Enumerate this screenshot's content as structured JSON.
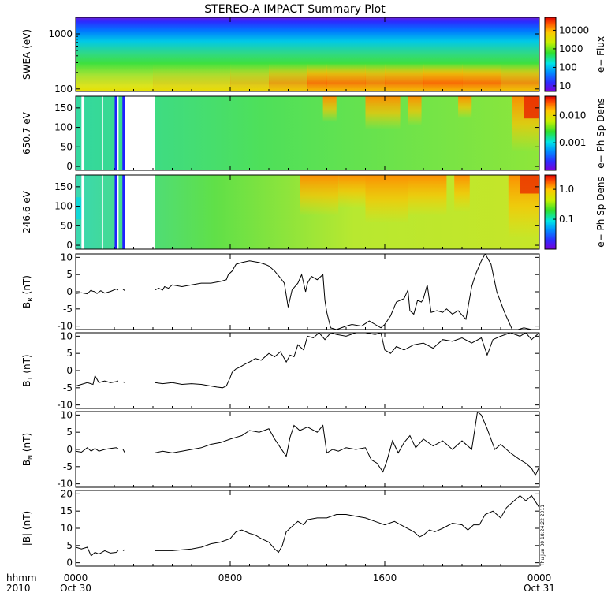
{
  "title": "STEREO-A IMPACT Summary Plot",
  "x_axis": {
    "corner_labels": [
      "hhmm",
      "2010"
    ],
    "tick_labels": [
      "0000",
      "0800",
      "1600",
      "0000"
    ],
    "tick_hours": [
      0,
      8,
      16,
      24
    ],
    "date_labels": [
      "Oct 30",
      "Oct 31"
    ],
    "range_hours": [
      0,
      24
    ]
  },
  "timestamp": "Thu Jun 30 18:24:22 2011",
  "colors": {
    "line": "#000000",
    "background": "#ffffff",
    "gap": "#ffffff"
  },
  "chart_data": [
    {
      "type": "heatmap",
      "ylabel": "SWEA (eV)",
      "yscale": "log",
      "ylim": [
        90,
        2000
      ],
      "ytick_values": [
        100,
        1000
      ],
      "ytick_labels": [
        "100",
        "1000"
      ],
      "colorbar": {
        "label": "e− Flux",
        "scale": "log",
        "range": [
          5,
          50000
        ],
        "tick_values": [
          10,
          100,
          1000,
          10000
        ],
        "tick_labels": [
          "10",
          "100",
          "1000",
          "10000"
        ]
      },
      "data_gaps_hours": []
    },
    {
      "type": "heatmap",
      "ylabel": "650.7 eV",
      "ylim": [
        -10,
        180
      ],
      "ytick_values": [
        0,
        50,
        100,
        150
      ],
      "ytick_labels": [
        "0",
        "50",
        "100",
        "150"
      ],
      "colorbar": {
        "label": "e− Ph Sp Dens",
        "scale": "log",
        "range": [
          0.0001,
          0.05
        ],
        "tick_values": [
          0.001,
          0.01
        ],
        "tick_labels": [
          "0.001",
          "0.010"
        ]
      },
      "data_gaps_hours": [
        [
          -0.1,
          0.02
        ],
        [
          0.3,
          0.45
        ],
        [
          1.38,
          1.42
        ],
        [
          2.15,
          2.22
        ],
        [
          2.55,
          4.1
        ]
      ],
      "blue_stripes_hours": [
        2.08,
        2.48
      ]
    },
    {
      "type": "heatmap",
      "ylabel": "246.6 eV",
      "ylim": [
        -10,
        180
      ],
      "ytick_values": [
        0,
        50,
        100,
        150
      ],
      "ytick_labels": [
        "0",
        "50",
        "100",
        "150"
      ],
      "colorbar": {
        "label": "e− Ph Sp Dens",
        "scale": "log",
        "range": [
          0.01,
          3
        ],
        "tick_values": [
          0.1,
          1.0
        ],
        "tick_labels": [
          "0.1",
          "1.0"
        ]
      },
      "data_gaps_hours": [
        [
          -0.1,
          0.02
        ],
        [
          0.3,
          0.45
        ],
        [
          1.38,
          1.42
        ],
        [
          2.15,
          2.22
        ],
        [
          2.55,
          4.1
        ]
      ],
      "blue_stripes_hours": [
        2.08,
        2.48
      ]
    },
    {
      "type": "line",
      "ylabel": "B_R (nT)",
      "ylim": [
        -11,
        11
      ],
      "ytick_values": [
        10,
        5,
        0,
        -5,
        -10
      ],
      "ytick_labels": [
        "10",
        "5",
        "0",
        "-5",
        "-10"
      ],
      "x": [
        0.0,
        0.3,
        0.6,
        0.8,
        0.85,
        1.0,
        1.1,
        1.3,
        1.5,
        1.8,
        2.1,
        2.2,
        null,
        2.45,
        2.55,
        null,
        4.1,
        4.3,
        4.5,
        4.6,
        4.8,
        5.0,
        5.5,
        6.0,
        6.5,
        7.0,
        7.5,
        7.8,
        7.9,
        8.1,
        8.3,
        8.6,
        9.0,
        9.5,
        9.8,
        10.0,
        10.3,
        10.6,
        10.8,
        11.0,
        11.2,
        11.5,
        11.7,
        11.9,
        12.0,
        12.2,
        12.5,
        12.8,
        12.9,
        13.0,
        13.2,
        13.5,
        14.0,
        14.3,
        14.8,
        15.2,
        15.5,
        15.8,
        16.0,
        16.3,
        16.6,
        17.0,
        17.2,
        17.3,
        17.5,
        17.7,
        17.9,
        18.0,
        18.2,
        18.4,
        18.7,
        19.0,
        19.2,
        19.5,
        19.8,
        20.2,
        20.5,
        20.7,
        21.0,
        21.2,
        21.5,
        21.8,
        22.2,
        22.6,
        22.9,
        23.2,
        23.6,
        23.8,
        24.0
      ],
      "y": [
        -0.5,
        -0.3,
        -0.6,
        0.5,
        0.2,
        0.0,
        -0.5,
        0.3,
        -0.4,
        0.1,
        0.8,
        0.5,
        null,
        0.7,
        0.3,
        null,
        0.5,
        1.0,
        0.5,
        1.5,
        1.0,
        2.0,
        1.5,
        2.0,
        2.5,
        2.5,
        3.0,
        3.5,
        5.0,
        6.0,
        8.0,
        8.5,
        9.0,
        8.5,
        8.0,
        7.5,
        6.0,
        4.0,
        2.5,
        -4.5,
        0.5,
        2.5,
        5.0,
        0.0,
        2.5,
        4.5,
        3.5,
        5.0,
        -2.5,
        -6.0,
        -10.5,
        -11.0,
        -10.0,
        -9.5,
        -10.0,
        -8.5,
        -9.5,
        -10.5,
        -9.5,
        -7.0,
        -3.0,
        -2.0,
        0.5,
        -5.5,
        -6.5,
        -2.5,
        -3.0,
        -2.0,
        2.0,
        -6.0,
        -5.5,
        -6.0,
        -5.0,
        -6.5,
        -5.5,
        -8.0,
        1.5,
        5.0,
        9.0,
        11.0,
        8.0,
        0.0,
        -6.0,
        -11.0,
        -11.0,
        -10.5,
        -11.0,
        -11.0,
        -11.0
      ]
    },
    {
      "type": "line",
      "ylabel": "B_T (nT)",
      "ylim": [
        -11,
        11
      ],
      "ytick_values": [
        10,
        5,
        0,
        -5,
        -10
      ],
      "ytick_labels": [
        "10",
        "5",
        "0",
        "-5",
        "-10"
      ],
      "x": [
        0.0,
        0.3,
        0.6,
        0.9,
        1.0,
        1.2,
        1.5,
        1.8,
        2.1,
        2.2,
        null,
        2.45,
        2.55,
        null,
        4.1,
        4.5,
        5.0,
        5.5,
        6.0,
        6.5,
        7.0,
        7.3,
        7.6,
        7.8,
        8.0,
        8.1,
        8.3,
        8.5,
        8.8,
        9.0,
        9.3,
        9.6,
        10.0,
        10.3,
        10.6,
        10.9,
        11.1,
        11.3,
        11.5,
        11.8,
        12.0,
        12.3,
        12.6,
        12.9,
        13.2,
        13.5,
        14.0,
        14.5,
        15.0,
        15.5,
        15.8,
        16.0,
        16.3,
        16.6,
        17.0,
        17.5,
        18.0,
        18.5,
        19.0,
        19.5,
        20.0,
        20.5,
        21.0,
        21.3,
        21.6,
        22.0,
        22.5,
        23.0,
        23.3,
        23.6,
        24.0
      ],
      "y": [
        -4.5,
        -4.0,
        -3.5,
        -4.0,
        -1.5,
        -3.5,
        -3.0,
        -3.5,
        -3.2,
        -3.0,
        null,
        -3.3,
        -3.5,
        null,
        -3.5,
        -3.8,
        -3.5,
        -4.0,
        -3.8,
        -4.0,
        -4.5,
        -4.8,
        -5.0,
        -4.5,
        -2.0,
        -0.5,
        0.5,
        1.0,
        2.0,
        2.5,
        3.5,
        3.0,
        5.0,
        4.0,
        5.5,
        2.5,
        4.5,
        4.0,
        7.5,
        6.0,
        10.0,
        9.5,
        11.0,
        9.0,
        11.0,
        10.5,
        10.0,
        11.0,
        11.0,
        10.5,
        11.0,
        6.0,
        5.0,
        7.0,
        6.0,
        7.5,
        8.0,
        6.5,
        9.0,
        8.5,
        9.5,
        8.0,
        9.5,
        4.5,
        9.0,
        10.0,
        11.0,
        10.0,
        11.0,
        9.0,
        11.0
      ]
    },
    {
      "type": "line",
      "ylabel": "B_N (nT)",
      "ylim": [
        -11,
        11
      ],
      "ytick_values": [
        10,
        5,
        0,
        -5,
        -10
      ],
      "ytick_labels": [
        "10",
        "5",
        "0",
        "-5",
        "-10"
      ],
      "x": [
        0.0,
        0.3,
        0.6,
        0.8,
        1.0,
        1.2,
        1.5,
        1.8,
        2.1,
        2.2,
        null,
        2.45,
        2.55,
        null,
        4.1,
        4.5,
        5.0,
        5.5,
        6.0,
        6.5,
        7.0,
        7.5,
        8.0,
        8.3,
        8.6,
        9.0,
        9.5,
        10.0,
        10.3,
        10.6,
        10.9,
        11.1,
        11.3,
        11.6,
        12.0,
        12.5,
        12.8,
        13.0,
        13.3,
        13.6,
        14.0,
        14.5,
        15.0,
        15.3,
        15.6,
        15.9,
        16.1,
        16.4,
        16.7,
        17.0,
        17.3,
        17.6,
        18.0,
        18.5,
        19.0,
        19.5,
        20.0,
        20.5,
        20.8,
        21.0,
        21.3,
        21.7,
        22.0,
        22.5,
        23.0,
        23.3,
        23.6,
        23.8,
        24.0
      ],
      "y": [
        -0.5,
        -0.8,
        0.5,
        -0.5,
        0.3,
        -0.5,
        0.0,
        0.3,
        0.5,
        0.2,
        null,
        0.0,
        -1.0,
        null,
        -1.0,
        -0.5,
        -1.0,
        -0.5,
        0.0,
        0.5,
        1.5,
        2.0,
        3.0,
        3.5,
        4.0,
        5.5,
        5.0,
        6.0,
        3.0,
        0.5,
        -2.0,
        3.5,
        7.0,
        5.5,
        6.5,
        5.0,
        7.0,
        -1.0,
        0.0,
        -0.5,
        0.5,
        0.0,
        0.5,
        -3.0,
        -4.0,
        -6.5,
        -3.5,
        2.5,
        -1.0,
        2.0,
        4.0,
        0.5,
        3.0,
        1.0,
        2.5,
        0.0,
        2.5,
        0.0,
        11.0,
        10.0,
        6.0,
        0.0,
        1.5,
        -1.0,
        -3.0,
        -4.0,
        -5.5,
        -7.5,
        -5.0
      ]
    },
    {
      "type": "line",
      "ylabel": "|B| (nT)",
      "ylim": [
        -1,
        21
      ],
      "ytick_values": [
        20,
        15,
        10,
        5,
        0
      ],
      "ytick_labels": [
        "20",
        "15",
        "10",
        "5",
        "0"
      ],
      "x": [
        0.0,
        0.3,
        0.6,
        0.8,
        1.0,
        1.2,
        1.5,
        1.8,
        2.1,
        2.2,
        null,
        2.45,
        2.55,
        null,
        4.1,
        5.0,
        6.0,
        6.5,
        7.0,
        7.5,
        8.0,
        8.3,
        8.6,
        9.0,
        9.3,
        9.6,
        10.0,
        10.3,
        10.5,
        10.7,
        10.9,
        11.2,
        11.5,
        11.8,
        12.0,
        12.5,
        13.0,
        13.5,
        14.0,
        14.5,
        15.0,
        15.5,
        16.0,
        16.5,
        17.0,
        17.5,
        17.8,
        18.0,
        18.3,
        18.6,
        19.0,
        19.5,
        20.0,
        20.3,
        20.6,
        20.9,
        21.2,
        21.6,
        22.0,
        22.3,
        22.6,
        23.0,
        23.3,
        23.6,
        24.0
      ],
      "y": [
        4.5,
        4.0,
        4.5,
        2.0,
        3.0,
        2.5,
        3.5,
        2.8,
        3.0,
        3.5,
        null,
        3.5,
        3.8,
        null,
        3.5,
        3.5,
        4.0,
        4.5,
        5.5,
        6.0,
        7.0,
        9.0,
        9.5,
        8.5,
        8.0,
        7.0,
        6.0,
        4.0,
        3.0,
        5.0,
        9.0,
        10.5,
        12.0,
        11.0,
        12.5,
        13.0,
        13.0,
        14.0,
        14.0,
        13.5,
        13.0,
        12.0,
        11.0,
        12.0,
        10.5,
        9.0,
        7.5,
        8.0,
        9.5,
        9.0,
        10.0,
        11.5,
        11.0,
        9.5,
        11.0,
        11.0,
        14.0,
        15.0,
        13.0,
        16.0,
        17.5,
        19.5,
        18.0,
        19.5,
        16.0
      ]
    }
  ]
}
